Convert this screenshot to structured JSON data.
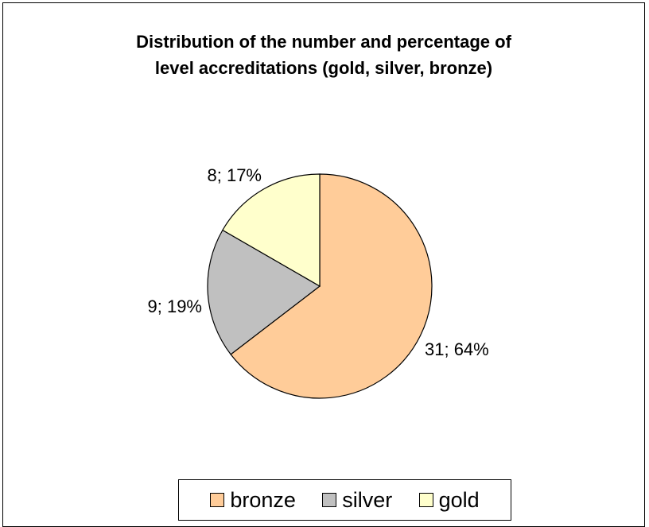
{
  "chart_data": {
    "type": "pie",
    "title": "Distribution of the number and percentage of level accreditations  (gold, silver, bronze)",
    "title_lines": [
      "Distribution of the number and percentage of",
      "level accreditations  (gold, silver, bronze)"
    ],
    "slices": [
      {
        "name": "bronze",
        "value": 31,
        "percent": 64,
        "label": "31; 64%",
        "color": "#FFCC99"
      },
      {
        "name": "silver",
        "value": 9,
        "percent": 19,
        "label": "9; 19%",
        "color": "#C0C0C0"
      },
      {
        "name": "gold",
        "value": 8,
        "percent": 17,
        "label": "8; 17%",
        "color": "#FFFFCC"
      }
    ],
    "legend": {
      "placement": "bottom",
      "entries": [
        "bronze",
        "silver",
        "gold"
      ]
    }
  }
}
